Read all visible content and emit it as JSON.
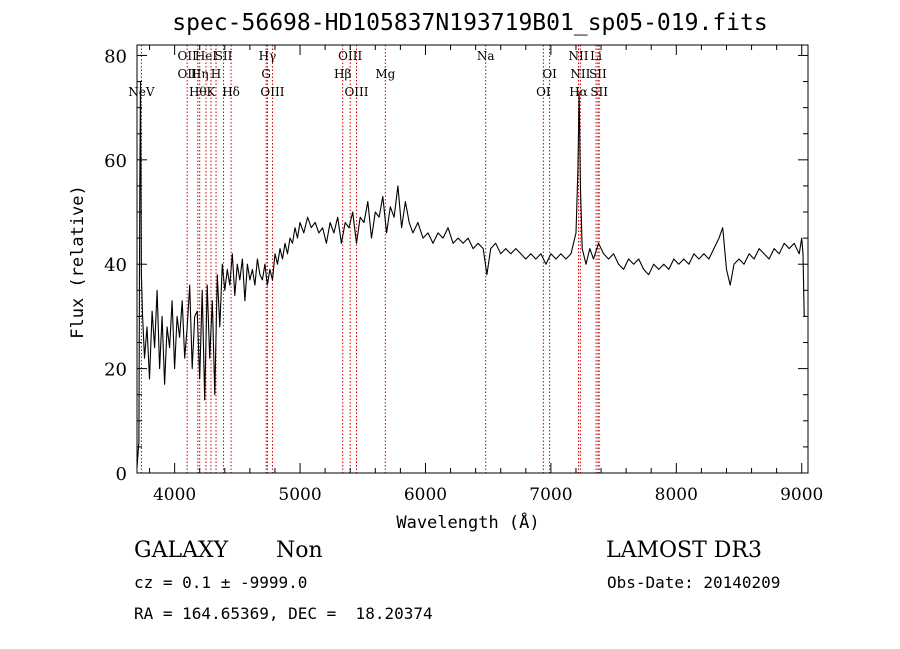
{
  "chart_data": {
    "type": "line",
    "title": "spec-56698-HD105837N193719B01_sp05-019.fits",
    "xlabel": "Wavelength (Å)",
    "ylabel": "Flux (relative)",
    "xlim": [
      3700,
      9050
    ],
    "ylim": [
      0,
      82
    ],
    "xticks": [
      4000,
      5000,
      6000,
      7000,
      8000,
      9000
    ],
    "yticks": [
      0,
      20,
      40,
      60,
      80
    ],
    "grid": false,
    "series": [
      {
        "color": "#000000",
        "points": [
          [
            3700,
            1
          ],
          [
            3715,
            6
          ],
          [
            3722,
            55
          ],
          [
            3728,
            75
          ],
          [
            3735,
            38
          ],
          [
            3745,
            30
          ],
          [
            3760,
            22
          ],
          [
            3780,
            28
          ],
          [
            3800,
            18
          ],
          [
            3820,
            31
          ],
          [
            3840,
            24
          ],
          [
            3860,
            35
          ],
          [
            3880,
            20
          ],
          [
            3900,
            30
          ],
          [
            3920,
            17
          ],
          [
            3940,
            28
          ],
          [
            3960,
            24
          ],
          [
            3980,
            33
          ],
          [
            4000,
            20
          ],
          [
            4020,
            30
          ],
          [
            4040,
            26
          ],
          [
            4060,
            33
          ],
          [
            4080,
            22
          ],
          [
            4100,
            28
          ],
          [
            4120,
            36
          ],
          [
            4140,
            20
          ],
          [
            4160,
            30
          ],
          [
            4180,
            31
          ],
          [
            4200,
            18
          ],
          [
            4220,
            35
          ],
          [
            4240,
            14
          ],
          [
            4260,
            36
          ],
          [
            4280,
            22
          ],
          [
            4300,
            33
          ],
          [
            4320,
            15
          ],
          [
            4340,
            38
          ],
          [
            4360,
            28
          ],
          [
            4380,
            40
          ],
          [
            4400,
            35
          ],
          [
            4420,
            39
          ],
          [
            4440,
            36
          ],
          [
            4460,
            42
          ],
          [
            4480,
            34
          ],
          [
            4500,
            40
          ],
          [
            4520,
            37
          ],
          [
            4540,
            41
          ],
          [
            4560,
            33
          ],
          [
            4580,
            40
          ],
          [
            4600,
            37
          ],
          [
            4620,
            39
          ],
          [
            4640,
            36
          ],
          [
            4660,
            41
          ],
          [
            4680,
            38
          ],
          [
            4700,
            37
          ],
          [
            4720,
            40
          ],
          [
            4740,
            36
          ],
          [
            4760,
            39
          ],
          [
            4780,
            37
          ],
          [
            4800,
            42
          ],
          [
            4820,
            40
          ],
          [
            4840,
            43
          ],
          [
            4860,
            41
          ],
          [
            4880,
            44
          ],
          [
            4900,
            42
          ],
          [
            4920,
            45
          ],
          [
            4940,
            44
          ],
          [
            4960,
            47
          ],
          [
            4980,
            45
          ],
          [
            5000,
            48
          ],
          [
            5030,
            46
          ],
          [
            5060,
            49
          ],
          [
            5090,
            47
          ],
          [
            5120,
            48
          ],
          [
            5150,
            46
          ],
          [
            5180,
            47
          ],
          [
            5210,
            44
          ],
          [
            5240,
            48
          ],
          [
            5270,
            46
          ],
          [
            5300,
            49
          ],
          [
            5330,
            44
          ],
          [
            5360,
            48
          ],
          [
            5390,
            47
          ],
          [
            5420,
            50
          ],
          [
            5450,
            44
          ],
          [
            5480,
            49
          ],
          [
            5510,
            48
          ],
          [
            5540,
            52
          ],
          [
            5570,
            45
          ],
          [
            5600,
            50
          ],
          [
            5630,
            49
          ],
          [
            5660,
            53
          ],
          [
            5690,
            46
          ],
          [
            5720,
            51
          ],
          [
            5750,
            49
          ],
          [
            5780,
            55
          ],
          [
            5810,
            47
          ],
          [
            5840,
            52
          ],
          [
            5870,
            48
          ],
          [
            5900,
            46
          ],
          [
            5940,
            48
          ],
          [
            5980,
            45
          ],
          [
            6020,
            46
          ],
          [
            6060,
            44
          ],
          [
            6100,
            46
          ],
          [
            6140,
            45
          ],
          [
            6180,
            47
          ],
          [
            6220,
            44
          ],
          [
            6260,
            45
          ],
          [
            6300,
            44
          ],
          [
            6340,
            45
          ],
          [
            6380,
            43
          ],
          [
            6420,
            44
          ],
          [
            6460,
            43
          ],
          [
            6490,
            38
          ],
          [
            6520,
            43
          ],
          [
            6560,
            44
          ],
          [
            6600,
            42
          ],
          [
            6640,
            43
          ],
          [
            6680,
            42
          ],
          [
            6720,
            43
          ],
          [
            6760,
            42
          ],
          [
            6800,
            41
          ],
          [
            6840,
            42
          ],
          [
            6880,
            41
          ],
          [
            6920,
            42
          ],
          [
            6960,
            40
          ],
          [
            7000,
            42
          ],
          [
            7040,
            41
          ],
          [
            7080,
            42
          ],
          [
            7120,
            41
          ],
          [
            7160,
            42
          ],
          [
            7200,
            46
          ],
          [
            7215,
            58
          ],
          [
            7225,
            73
          ],
          [
            7235,
            55
          ],
          [
            7250,
            43
          ],
          [
            7280,
            40
          ],
          [
            7310,
            43
          ],
          [
            7340,
            41
          ],
          [
            7380,
            44
          ],
          [
            7420,
            42
          ],
          [
            7460,
            41
          ],
          [
            7500,
            42
          ],
          [
            7540,
            40
          ],
          [
            7580,
            39
          ],
          [
            7620,
            41
          ],
          [
            7660,
            40
          ],
          [
            7700,
            41
          ],
          [
            7740,
            39
          ],
          [
            7780,
            38
          ],
          [
            7820,
            40
          ],
          [
            7860,
            39
          ],
          [
            7900,
            40
          ],
          [
            7940,
            39
          ],
          [
            7980,
            41
          ],
          [
            8020,
            40
          ],
          [
            8060,
            41
          ],
          [
            8100,
            40
          ],
          [
            8140,
            42
          ],
          [
            8180,
            41
          ],
          [
            8220,
            42
          ],
          [
            8260,
            41
          ],
          [
            8300,
            43
          ],
          [
            8340,
            45
          ],
          [
            8370,
            47
          ],
          [
            8400,
            39
          ],
          [
            8430,
            36
          ],
          [
            8460,
            40
          ],
          [
            8500,
            41
          ],
          [
            8540,
            40
          ],
          [
            8580,
            42
          ],
          [
            8620,
            41
          ],
          [
            8660,
            43
          ],
          [
            8700,
            42
          ],
          [
            8740,
            41
          ],
          [
            8780,
            43
          ],
          [
            8820,
            42
          ],
          [
            8860,
            44
          ],
          [
            8900,
            43
          ],
          [
            8940,
            44
          ],
          [
            8980,
            42
          ],
          [
            9000,
            45
          ],
          [
            9010,
            42
          ],
          [
            9020,
            30
          ]
        ]
      }
    ],
    "line_markers": [
      {
        "label": "NeV",
        "x": 3735,
        "row": 3
      },
      {
        "label": "OII",
        "x": 4100,
        "row": 0
      },
      {
        "label": "OII",
        "x": 4100,
        "row": 1
      },
      {
        "label": "Hθ",
        "x": 4185,
        "row": 2
      },
      {
        "label": "Hη",
        "x": 4200,
        "row": 1
      },
      {
        "label": "HeI",
        "x": 4250,
        "row": 0
      },
      {
        "label": "K",
        "x": 4290,
        "row": 2
      },
      {
        "label": "H",
        "x": 4330,
        "row": 1
      },
      {
        "label": "SII",
        "x": 4390,
        "row": 0
      },
      {
        "label": "Hδ",
        "x": 4450,
        "row": 2
      },
      {
        "label": "Hγ",
        "x": 4740,
        "row": 0
      },
      {
        "label": "G",
        "x": 4730,
        "row": 1
      },
      {
        "label": "OIII",
        "x": 4780,
        "row": 2
      },
      {
        "label": "OIII",
        "x": 5400,
        "row": 0
      },
      {
        "label": "Hβ",
        "x": 5340,
        "row": 1
      },
      {
        "label": "OIII",
        "x": 5450,
        "row": 2
      },
      {
        "label": "Mg",
        "x": 5680,
        "row": 1
      },
      {
        "label": "Na",
        "x": 6480,
        "row": 0
      },
      {
        "label": "OI",
        "x": 6990,
        "row": 1
      },
      {
        "label": "OI",
        "x": 6940,
        "row": 2
      },
      {
        "label": "NII",
        "x": 7220,
        "row": 0
      },
      {
        "label": "Li",
        "x": 7360,
        "row": 0
      },
      {
        "label": "NII",
        "x": 7235,
        "row": 1
      },
      {
        "label": "SII",
        "x": 7375,
        "row": 1
      },
      {
        "label": "Hα",
        "x": 7220,
        "row": 2
      },
      {
        "label": "SII",
        "x": 7385,
        "row": 2
      }
    ],
    "marker_color": "#cc0000"
  },
  "footer": {
    "object_class": "GALAXY",
    "subclass": "Non",
    "survey": "LAMOST DR3",
    "cz_line": "cz = 0.1 ± -9999.0",
    "obs_date_line": "Obs-Date: 20140209",
    "coords_line": "RA = 164.65369, DEC =  18.20374"
  }
}
